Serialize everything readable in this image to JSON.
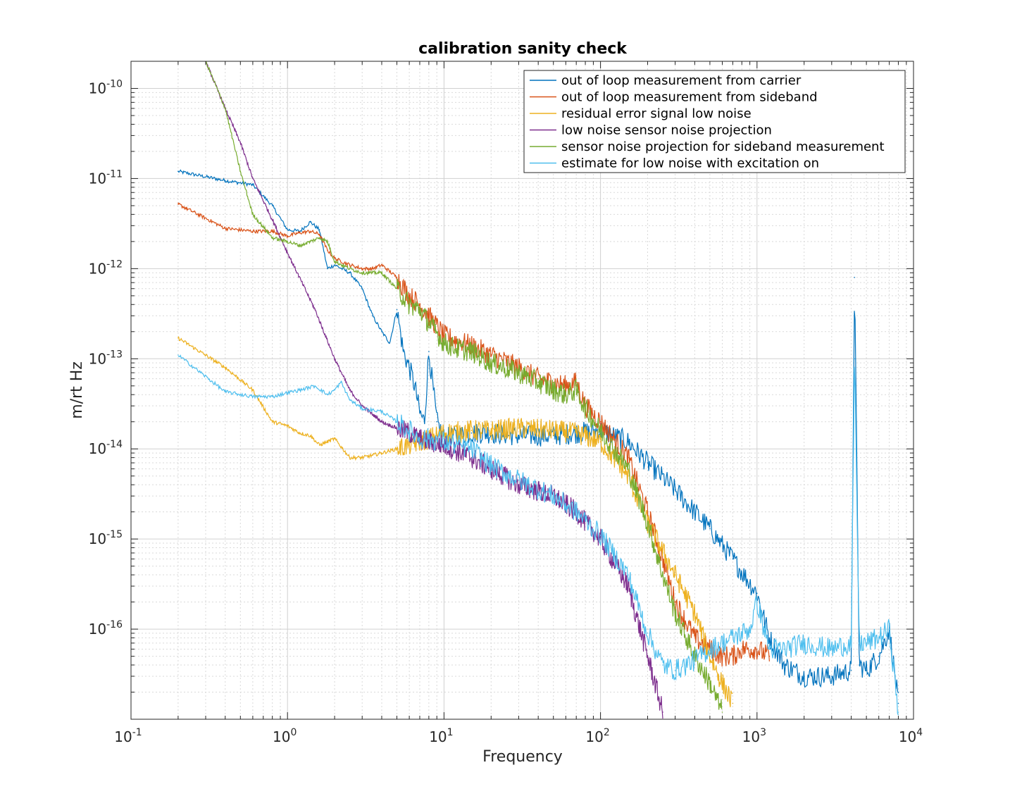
{
  "chart_data": {
    "type": "line",
    "title": "calibration sanity check",
    "xlabel": "Frequency",
    "ylabel": "m/rt Hz",
    "xscale": "log",
    "yscale": "log",
    "xlim": [
      0.1,
      10000
    ],
    "ylim": [
      1e-17,
      2e-10
    ],
    "grid": true,
    "minor_grid": true,
    "legend_position": "top-right",
    "x_tick_labels": [
      {
        "value": 0.1,
        "base": "10",
        "exp": "-1"
      },
      {
        "value": 1,
        "base": "10",
        "exp": "0"
      },
      {
        "value": 10,
        "base": "10",
        "exp": "1"
      },
      {
        "value": 100,
        "base": "10",
        "exp": "2"
      },
      {
        "value": 1000,
        "base": "10",
        "exp": "3"
      },
      {
        "value": 10000,
        "base": "10",
        "exp": "4"
      }
    ],
    "y_tick_labels": [
      {
        "value": 1e-16,
        "base": "10",
        "exp": "-16"
      },
      {
        "value": 1e-15,
        "base": "10",
        "exp": "-15"
      },
      {
        "value": 1e-14,
        "base": "10",
        "exp": "-14"
      },
      {
        "value": 1e-13,
        "base": "10",
        "exp": "-13"
      },
      {
        "value": 1e-12,
        "base": "10",
        "exp": "-12"
      },
      {
        "value": 1e-11,
        "base": "10",
        "exp": "-11"
      },
      {
        "value": 1e-10,
        "base": "10",
        "exp": "-10"
      }
    ],
    "series": [
      {
        "name": "out of loop measurement from carrier",
        "color": "#0072BD",
        "x": [
          0.2,
          0.4,
          0.6,
          0.8,
          1.0,
          1.2,
          1.4,
          1.6,
          1.8,
          2,
          2.5,
          3,
          3.5,
          4,
          4.5,
          5,
          5.5,
          6,
          6.5,
          7,
          7.5,
          8,
          9,
          10,
          15,
          20,
          30,
          50,
          70,
          100,
          150,
          200,
          300,
          500,
          700,
          1000,
          1200,
          1500,
          2000,
          3000,
          4000,
          4200,
          4500,
          5000,
          6000,
          7000,
          8000
        ],
        "y": [
          1.2e-11,
          9.5e-12,
          8.5e-12,
          5e-12,
          2.7e-12,
          2.6e-12,
          3.3e-12,
          2.7e-12,
          1e-12,
          1.1e-12,
          9e-13,
          6e-13,
          3e-13,
          2e-13,
          1.5e-13,
          3.5e-13,
          1.2e-13,
          8e-14,
          5e-14,
          2.5e-14,
          2e-14,
          1.2e-13,
          2e-14,
          1.3e-14,
          1.5e-14,
          1.5e-14,
          1.4e-14,
          1.4e-14,
          1.5e-14,
          1.6e-14,
          1.2e-14,
          7e-15,
          3.5e-15,
          1.3e-15,
          6e-16,
          2.5e-16,
          8e-17,
          4e-17,
          3e-17,
          3e-17,
          3.5e-17,
          8e-13,
          4e-17,
          3.5e-17,
          5e-17,
          1e-16,
          1.5e-17
        ]
      },
      {
        "name": "out of loop measurement from sideband",
        "color": "#D95319",
        "x": [
          0.2,
          0.4,
          0.6,
          0.8,
          1.0,
          1.2,
          1.4,
          1.6,
          1.8,
          2,
          2.5,
          3,
          3.5,
          4,
          5,
          6,
          7,
          8,
          10,
          12,
          15,
          20,
          30,
          40,
          50,
          60,
          70,
          80,
          100,
          150,
          200,
          250,
          300,
          400,
          500,
          600,
          700,
          800,
          1000,
          1200
        ],
        "y": [
          5.2e-12,
          2.8e-12,
          2.6e-12,
          2.6e-12,
          2.3e-12,
          2.5e-12,
          2.6e-12,
          2.4e-12,
          1.6e-12,
          1.3e-12,
          1.1e-12,
          1e-12,
          1e-12,
          1.1e-12,
          8e-13,
          5e-13,
          4e-13,
          3e-13,
          1.8e-13,
          1.6e-13,
          1.4e-13,
          1.1e-13,
          8e-14,
          6e-14,
          5.5e-14,
          5e-14,
          5.5e-14,
          3e-14,
          2e-14,
          8e-15,
          2e-15,
          6e-16,
          2e-16,
          8e-17,
          6e-17,
          5e-17,
          5e-17,
          6e-17,
          6e-17,
          5e-17
        ]
      },
      {
        "name": "residual error signal low noise",
        "color": "#EDB120",
        "x": [
          0.2,
          0.4,
          0.6,
          0.8,
          1.0,
          1.2,
          1.4,
          1.6,
          1.8,
          2,
          2.5,
          3,
          3.5,
          4,
          5,
          6,
          7,
          8,
          9,
          10,
          15,
          20,
          30,
          50,
          70,
          100,
          150,
          200,
          300,
          400,
          500,
          600,
          700
        ],
        "y": [
          1.7e-13,
          8e-14,
          4.5e-14,
          2e-14,
          1.8e-14,
          1.5e-14,
          1.4e-14,
          1.1e-14,
          1.2e-14,
          1.3e-14,
          8e-15,
          8e-15,
          8.5e-15,
          9e-15,
          1e-14,
          1.1e-14,
          1.2e-14,
          1.3e-14,
          1.4e-14,
          1.5e-14,
          1.6e-14,
          1.6e-14,
          1.7e-14,
          1.6e-14,
          1.5e-14,
          1.2e-14,
          5e-15,
          1.5e-15,
          4e-16,
          1.5e-16,
          5e-17,
          2.5e-17,
          1.5e-17
        ]
      },
      {
        "name": "low noise sensor noise projection",
        "color": "#7E2F8E",
        "x": [
          0.3,
          0.4,
          0.5,
          0.6,
          0.8,
          1.0,
          1.5,
          2,
          2.5,
          3,
          4,
          5,
          6,
          7,
          8,
          10,
          15,
          20,
          30,
          50,
          70,
          100,
          150,
          200,
          250
        ],
        "y": [
          2e-10,
          6e-11,
          2.5e-11,
          1e-11,
          3.5e-12,
          1.5e-12,
          3.5e-13,
          1e-13,
          4.5e-14,
          3e-14,
          2e-14,
          1.7e-14,
          1.5e-14,
          1.3e-14,
          1.2e-14,
          1.1e-14,
          8e-15,
          6e-15,
          4e-15,
          3e-15,
          2e-15,
          1e-15,
          3e-16,
          5e-17,
          1.2e-17
        ]
      },
      {
        "name": "sensor noise projection for sideband measurement",
        "color": "#77AC30",
        "x": [
          0.3,
          0.4,
          0.5,
          0.6,
          0.8,
          1.0,
          1.2,
          1.4,
          1.6,
          1.8,
          2,
          2.5,
          3,
          3.5,
          4,
          5,
          6,
          7,
          8,
          10,
          12,
          15,
          20,
          30,
          40,
          50,
          60,
          70,
          80,
          100,
          150,
          200,
          250,
          300,
          400,
          500,
          600
        ],
        "y": [
          2e-10,
          6e-11,
          1.2e-11,
          4e-12,
          2.2e-12,
          2e-12,
          1.8e-12,
          2e-12,
          2.2e-12,
          2e-12,
          1.2e-12,
          1e-12,
          9e-13,
          9e-13,
          9e-13,
          6e-13,
          4e-13,
          3.5e-13,
          2.5e-13,
          1.5e-13,
          1.3e-13,
          1.2e-13,
          9e-14,
          7e-14,
          5.5e-14,
          4.5e-14,
          4e-14,
          4.5e-14,
          2.8e-14,
          1.6e-14,
          6e-15,
          1.5e-15,
          4e-16,
          1.5e-16,
          5e-17,
          2.5e-17,
          1.2e-17
        ]
      },
      {
        "name": "estimate for low noise with excitation on",
        "color": "#4DBEEE",
        "x": [
          0.2,
          0.4,
          0.6,
          0.8,
          1.0,
          1.2,
          1.5,
          1.8,
          2,
          2.2,
          2.5,
          3,
          4,
          5,
          6,
          7,
          8,
          10,
          15,
          20,
          30,
          50,
          70,
          100,
          150,
          200,
          250,
          300,
          400,
          500,
          700,
          900,
          1000,
          1200,
          1500,
          2000,
          3000,
          4000,
          4200,
          4500,
          5000,
          6000,
          7000,
          8000
        ],
        "y": [
          1.1e-13,
          4.3e-14,
          3.8e-14,
          3.8e-14,
          4.2e-14,
          4.5e-14,
          5e-14,
          4e-14,
          4.5e-14,
          5.5e-14,
          3.5e-14,
          2.8e-14,
          2.6e-14,
          2e-14,
          1.6e-14,
          1.3e-14,
          1.3e-14,
          1.2e-14,
          1e-14,
          6.5e-15,
          4.5e-15,
          3e-15,
          2e-15,
          1.1e-15,
          4e-16,
          9e-17,
          4e-17,
          3.5e-17,
          4.5e-17,
          6e-17,
          8e-17,
          1e-16,
          2e-16,
          6e-17,
          6e-17,
          7e-17,
          6e-17,
          7e-17,
          1e-13,
          7e-17,
          7e-17,
          8e-17,
          1e-16,
          1.2e-17
        ]
      }
    ]
  }
}
